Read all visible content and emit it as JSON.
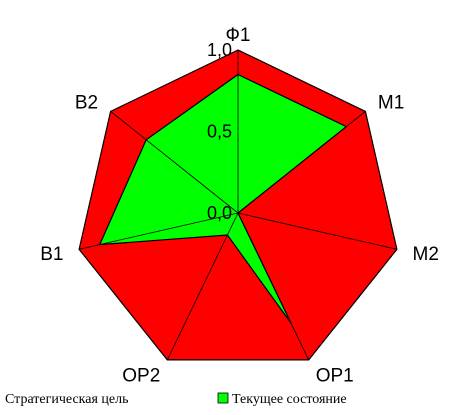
{
  "chart_data": {
    "type": "radar",
    "axes": [
      "Ф1",
      "М1",
      "М2",
      "ОР1",
      "ОР2",
      "В1",
      "В2"
    ],
    "rlim": [
      0,
      1
    ],
    "ticks": [
      {
        "value": 0.0,
        "label": "0,0"
      },
      {
        "value": 0.5,
        "label": "0,5"
      },
      {
        "value": 1.0,
        "label": "1,0"
      }
    ],
    "series": [
      {
        "name": "Стратегическая цель",
        "color": "#ff0000",
        "values": [
          1,
          1,
          1,
          1,
          1,
          1,
          1
        ]
      },
      {
        "name": "Текущее состояние",
        "color": "#00ff00",
        "values": [
          0.85,
          0.85,
          0.0,
          0.75,
          0.15,
          0.87,
          0.72
        ]
      }
    ],
    "grid": false,
    "legend": "bottom"
  }
}
